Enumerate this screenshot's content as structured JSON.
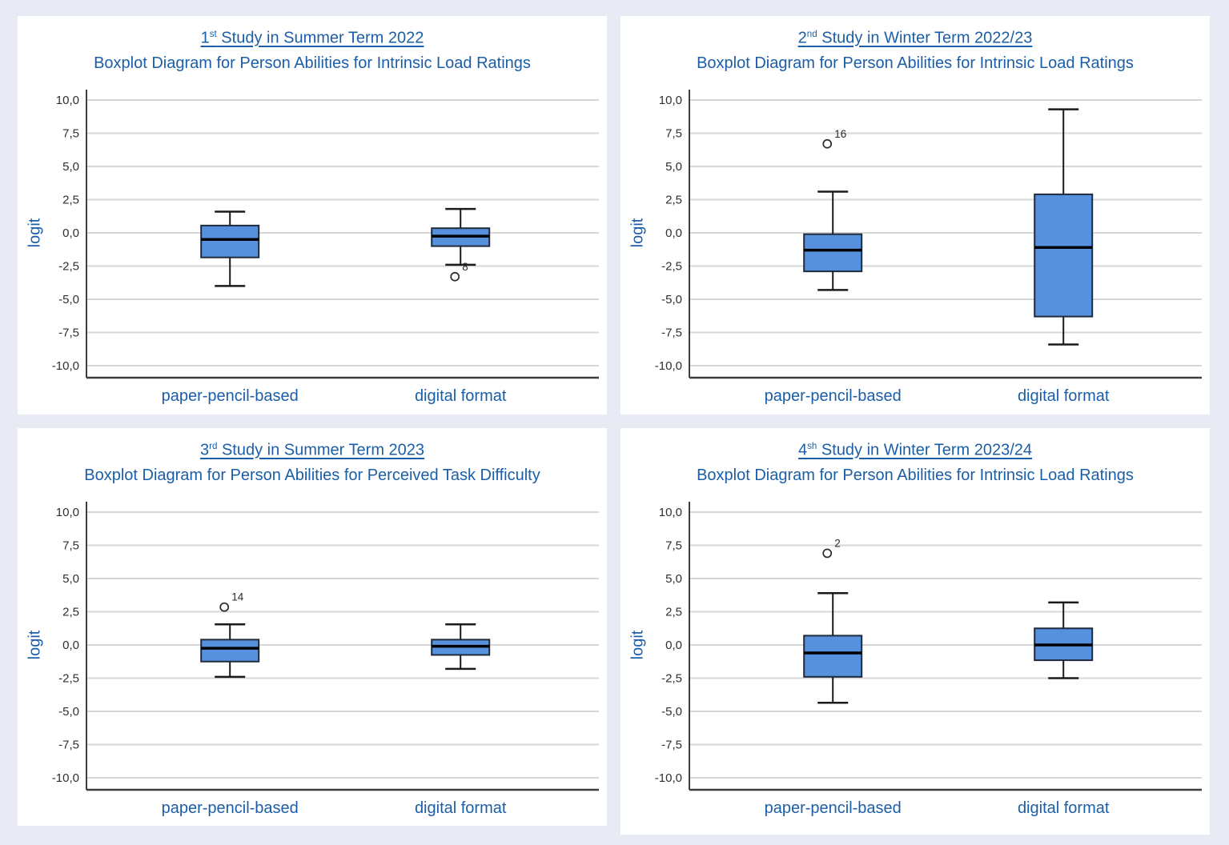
{
  "page": {
    "background": "#e8ebf4",
    "panel_background": "#ffffff"
  },
  "colors": {
    "title_blue": "#1b5ea8",
    "box_fill": "#5791de",
    "box_border": "#1f2a3c",
    "median_line": "#000000",
    "whisker": "#1a1a1a",
    "gridline": "#d7d7d7",
    "axis_line": "#3d3d3d",
    "tick_text": "#2f2f2f",
    "outlier": "#2a2a2a"
  },
  "chart_data": [
    {
      "type": "boxplot",
      "title_num": "1",
      "title_sup": "st",
      "title_rest": " Study in Summer Term 2022",
      "subtitle": "Boxplot Diagram for Person Abilities for Intrinsic Load Ratings",
      "ylabel": "logit",
      "ylim": [
        -10,
        10
      ],
      "grid": true,
      "ytick_values": [
        10,
        7.5,
        5,
        2.5,
        0,
        -2.5,
        -5,
        -7.5,
        -10
      ],
      "ytick_labels": [
        "10,0",
        "7,5",
        "5,0",
        "2,5",
        "0,0",
        "-2,5",
        "-5,0",
        "-7,5",
        "-10,0"
      ],
      "categories": [
        "paper-pencil-based",
        "digital format"
      ],
      "boxes": [
        {
          "category": "paper-pencil-based",
          "whisker_low": -4.0,
          "q1": -1.85,
          "median": -0.5,
          "q3": 0.55,
          "whisker_high": 1.6,
          "outliers": []
        },
        {
          "category": "digital format",
          "whisker_low": -2.4,
          "q1": -1.0,
          "median": -0.25,
          "q3": 0.35,
          "whisker_high": 1.8,
          "outliers": [
            {
              "value": -3.3,
              "label": "8"
            }
          ]
        }
      ]
    },
    {
      "type": "boxplot",
      "title_num": "2",
      "title_sup": "nd",
      "title_rest": " Study in Winter Term 2022/23",
      "subtitle": "Boxplot Diagram for Person Abilities for Intrinsic Load Ratings",
      "ylabel": "logit",
      "ylim": [
        -10,
        10
      ],
      "grid": true,
      "ytick_values": [
        10,
        7.5,
        5,
        2.5,
        0,
        -2.5,
        -5,
        -7.5,
        -10
      ],
      "ytick_labels": [
        "10,0",
        "7,5",
        "5,0",
        "2,5",
        "0,0",
        "-2,5",
        "-5,0",
        "-7,5",
        "-10,0"
      ],
      "categories": [
        "paper-pencil-based",
        "digital format"
      ],
      "boxes": [
        {
          "category": "paper-pencil-based",
          "whisker_low": -4.3,
          "q1": -2.9,
          "median": -1.3,
          "q3": -0.1,
          "whisker_high": 3.1,
          "outliers": [
            {
              "value": 6.7,
              "label": "16"
            }
          ]
        },
        {
          "category": "digital format",
          "whisker_low": -8.4,
          "q1": -6.3,
          "median": -1.1,
          "q3": 2.9,
          "whisker_high": 9.3,
          "outliers": []
        }
      ]
    },
    {
      "type": "boxplot",
      "title_num": "3",
      "title_sup": "rd",
      "title_rest": " Study in Summer Term 2023",
      "subtitle": "Boxplot Diagram for Person Abilities for Perceived Task Difficulty",
      "ylabel": "logit",
      "ylim": [
        -10,
        10
      ],
      "grid": true,
      "ytick_values": [
        10,
        7.5,
        5,
        2.5,
        0,
        -2.5,
        -5,
        -7.5,
        -10
      ],
      "ytick_labels": [
        "10,0",
        "7,5",
        "5,0",
        "2,5",
        "0,0",
        "-2,5",
        "-5,0",
        "-7,5",
        "-10,0"
      ],
      "categories": [
        "paper-pencil-based",
        "digital format"
      ],
      "boxes": [
        {
          "category": "paper-pencil-based",
          "whisker_low": -2.4,
          "q1": -1.25,
          "median": -0.25,
          "q3": 0.4,
          "whisker_high": 1.55,
          "outliers": [
            {
              "value": 2.85,
              "label": "14"
            }
          ]
        },
        {
          "category": "digital format",
          "whisker_low": -1.8,
          "q1": -0.75,
          "median": -0.1,
          "q3": 0.4,
          "whisker_high": 1.55,
          "outliers": []
        }
      ]
    },
    {
      "type": "boxplot",
      "title_num": "4",
      "title_sup": "sh",
      "title_rest": " Study in Winter Term 2023/24",
      "subtitle": "Boxplot Diagram for Person Abilities for Intrinsic Load Ratings",
      "ylabel": "logit",
      "ylim": [
        -10,
        10
      ],
      "grid": true,
      "ytick_values": [
        10,
        7.5,
        5,
        2.5,
        0,
        -2.5,
        -5,
        -7.5,
        -10
      ],
      "ytick_labels": [
        "10,0",
        "7,5",
        "5,0",
        "2,5",
        "0,0",
        "-2,5",
        "-5,0",
        "-7,5",
        "-10,0"
      ],
      "categories": [
        "paper-pencil-based",
        "digital format"
      ],
      "boxes": [
        {
          "category": "paper-pencil-based",
          "whisker_low": -4.35,
          "q1": -2.4,
          "median": -0.6,
          "q3": 0.7,
          "whisker_high": 3.9,
          "outliers": [
            {
              "value": 6.9,
              "label": "2"
            }
          ]
        },
        {
          "category": "digital format",
          "whisker_low": -2.5,
          "q1": -1.15,
          "median": 0.0,
          "q3": 1.25,
          "whisker_high": 3.2,
          "outliers": []
        }
      ]
    }
  ]
}
